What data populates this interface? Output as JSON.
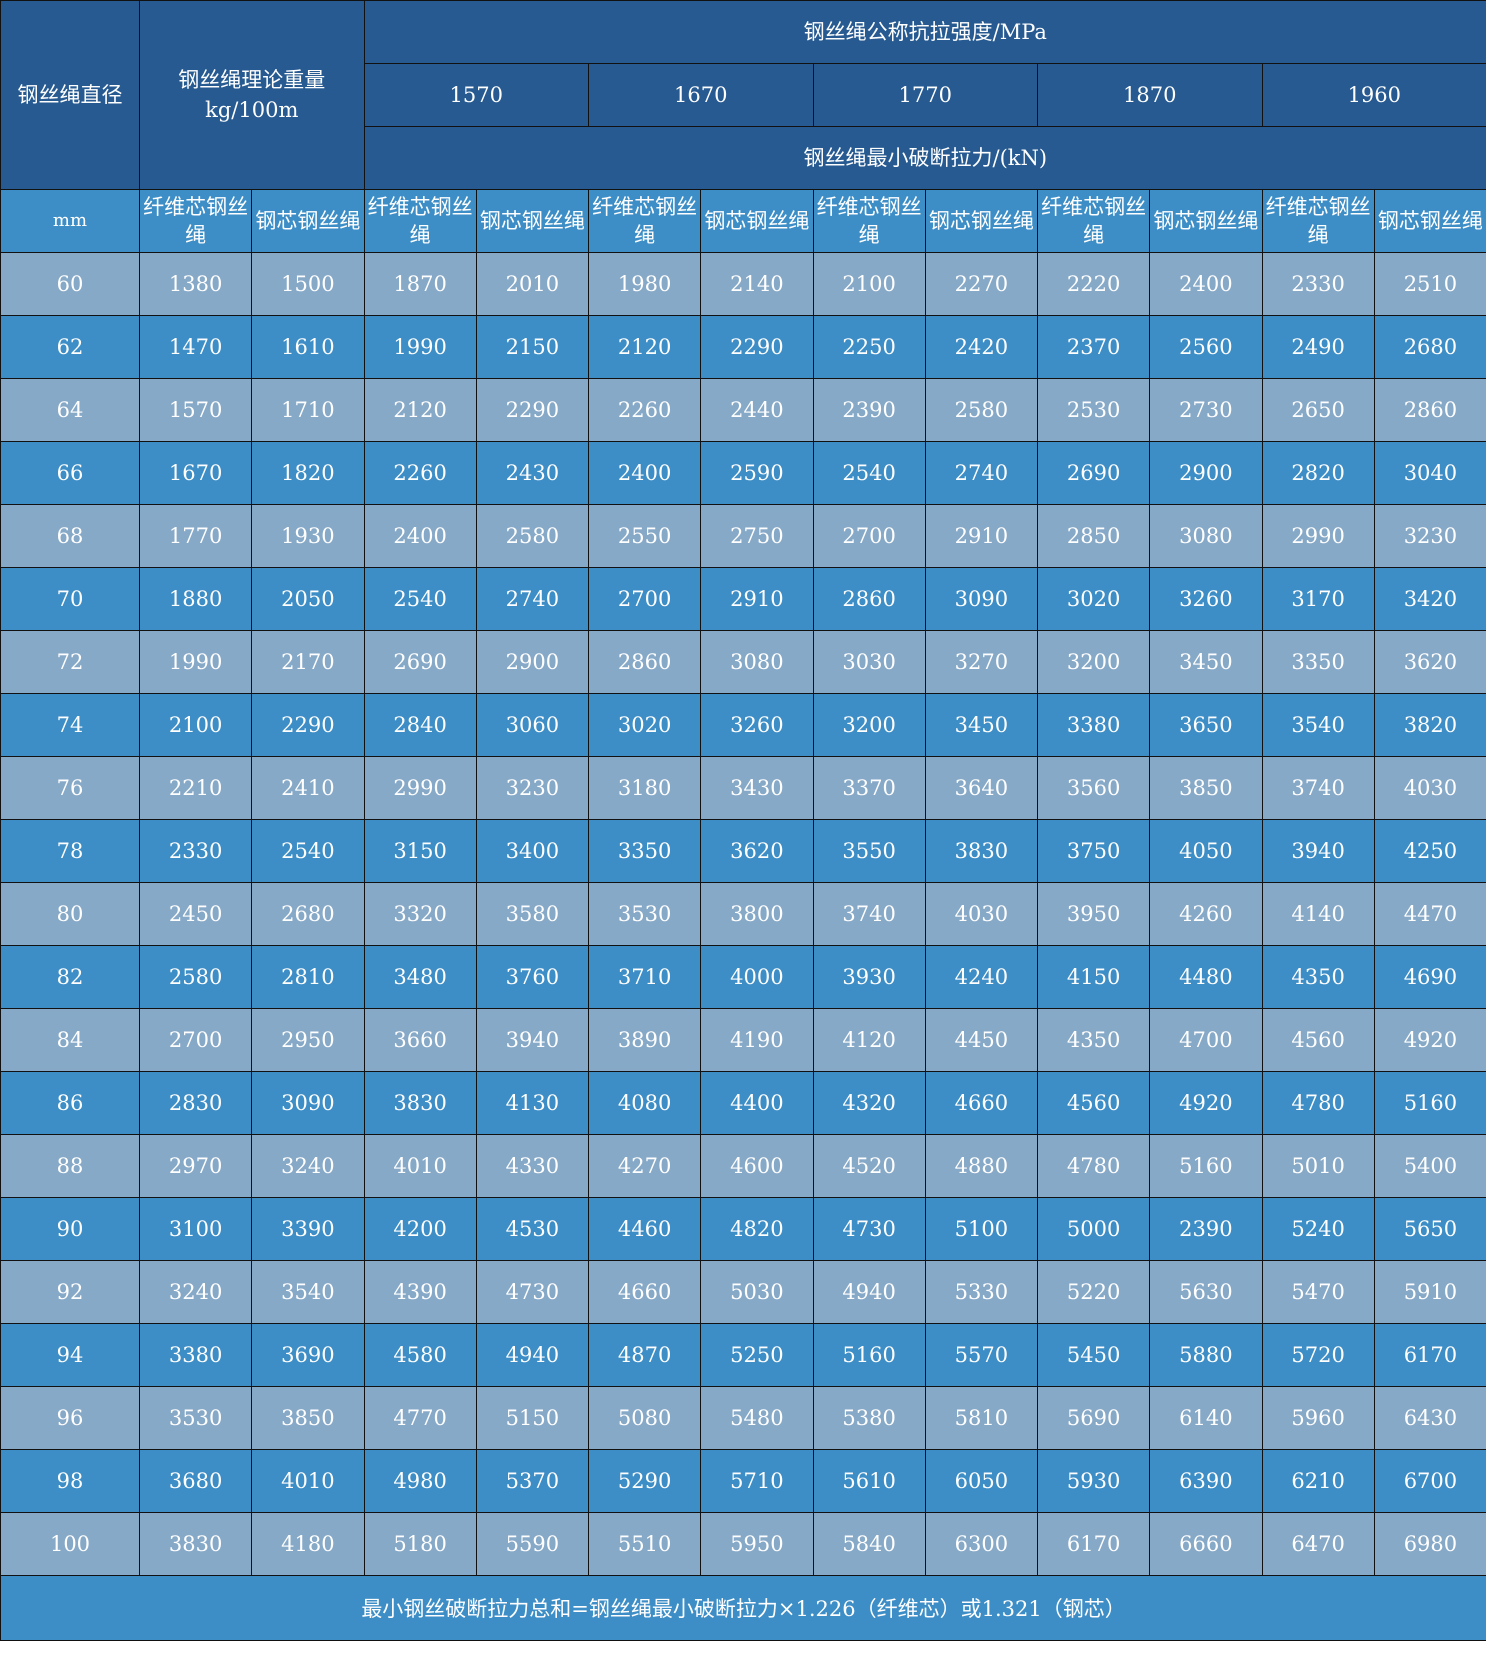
{
  "header": {
    "diameter": "钢丝绳直径",
    "weight": "钢丝绳理论重量",
    "weight_unit": "kg/100m",
    "strength": "钢丝绳公称抗拉强度/MPa",
    "grades": [
      "1570",
      "1670",
      "1770",
      "1870",
      "1960"
    ],
    "breaking_force": "钢丝绳最小破断拉力/(kN)",
    "unit_mm": "mm",
    "fiber_core": "纤维芯钢丝绳",
    "steel_core": "钢芯钢丝绳"
  },
  "colors": {
    "header": "#265a91",
    "subheader": "#3d8ec6",
    "row_light": "#87a9c8",
    "row_dark": "#3d8ec6"
  },
  "rows": [
    [
      "60",
      "1380",
      "1500",
      "1870",
      "2010",
      "1980",
      "2140",
      "2100",
      "2270",
      "2220",
      "2400",
      "2330",
      "2510"
    ],
    [
      "62",
      "1470",
      "1610",
      "1990",
      "2150",
      "2120",
      "2290",
      "2250",
      "2420",
      "2370",
      "2560",
      "2490",
      "2680"
    ],
    [
      "64",
      "1570",
      "1710",
      "2120",
      "2290",
      "2260",
      "2440",
      "2390",
      "2580",
      "2530",
      "2730",
      "2650",
      "2860"
    ],
    [
      "66",
      "1670",
      "1820",
      "2260",
      "2430",
      "2400",
      "2590",
      "2540",
      "2740",
      "2690",
      "2900",
      "2820",
      "3040"
    ],
    [
      "68",
      "1770",
      "1930",
      "2400",
      "2580",
      "2550",
      "2750",
      "2700",
      "2910",
      "2850",
      "3080",
      "2990",
      "3230"
    ],
    [
      "70",
      "1880",
      "2050",
      "2540",
      "2740",
      "2700",
      "2910",
      "2860",
      "3090",
      "3020",
      "3260",
      "3170",
      "3420"
    ],
    [
      "72",
      "1990",
      "2170",
      "2690",
      "2900",
      "2860",
      "3080",
      "3030",
      "3270",
      "3200",
      "3450",
      "3350",
      "3620"
    ],
    [
      "74",
      "2100",
      "2290",
      "2840",
      "3060",
      "3020",
      "3260",
      "3200",
      "3450",
      "3380",
      "3650",
      "3540",
      "3820"
    ],
    [
      "76",
      "2210",
      "2410",
      "2990",
      "3230",
      "3180",
      "3430",
      "3370",
      "3640",
      "3560",
      "3850",
      "3740",
      "4030"
    ],
    [
      "78",
      "2330",
      "2540",
      "3150",
      "3400",
      "3350",
      "3620",
      "3550",
      "3830",
      "3750",
      "4050",
      "3940",
      "4250"
    ],
    [
      "80",
      "2450",
      "2680",
      "3320",
      "3580",
      "3530",
      "3800",
      "3740",
      "4030",
      "3950",
      "4260",
      "4140",
      "4470"
    ],
    [
      "82",
      "2580",
      "2810",
      "3480",
      "3760",
      "3710",
      "4000",
      "3930",
      "4240",
      "4150",
      "4480",
      "4350",
      "4690"
    ],
    [
      "84",
      "2700",
      "2950",
      "3660",
      "3940",
      "3890",
      "4190",
      "4120",
      "4450",
      "4350",
      "4700",
      "4560",
      "4920"
    ],
    [
      "86",
      "2830",
      "3090",
      "3830",
      "4130",
      "4080",
      "4400",
      "4320",
      "4660",
      "4560",
      "4920",
      "4780",
      "5160"
    ],
    [
      "88",
      "2970",
      "3240",
      "4010",
      "4330",
      "4270",
      "4600",
      "4520",
      "4880",
      "4780",
      "5160",
      "5010",
      "5400"
    ],
    [
      "90",
      "3100",
      "3390",
      "4200",
      "4530",
      "4460",
      "4820",
      "4730",
      "5100",
      "5000",
      "2390",
      "5240",
      "5650"
    ],
    [
      "92",
      "3240",
      "3540",
      "4390",
      "4730",
      "4660",
      "5030",
      "4940",
      "5330",
      "5220",
      "5630",
      "5470",
      "5910"
    ],
    [
      "94",
      "3380",
      "3690",
      "4580",
      "4940",
      "4870",
      "5250",
      "5160",
      "5570",
      "5450",
      "5880",
      "5720",
      "6170"
    ],
    [
      "96",
      "3530",
      "3850",
      "4770",
      "5150",
      "5080",
      "5480",
      "5380",
      "5810",
      "5690",
      "6140",
      "5960",
      "6430"
    ],
    [
      "98",
      "3680",
      "4010",
      "4980",
      "5370",
      "5290",
      "5710",
      "5610",
      "6050",
      "5930",
      "6390",
      "6210",
      "6700"
    ],
    [
      "100",
      "3830",
      "4180",
      "5180",
      "5590",
      "5510",
      "5950",
      "5840",
      "6300",
      "6170",
      "6660",
      "6470",
      "6980"
    ]
  ],
  "footer": "最小钢丝破断拉力总和=钢丝绳最小破断拉力×1.226（纤维芯）或1.321（钢芯）"
}
